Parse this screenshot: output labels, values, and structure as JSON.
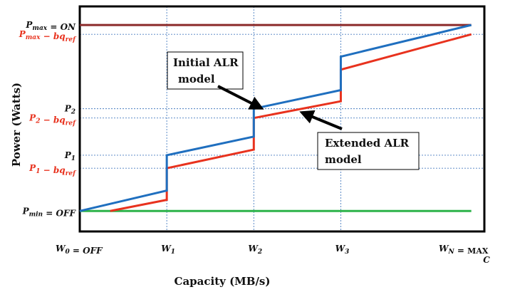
{
  "chart_data": {
    "type": "line",
    "title": "",
    "xlabel": "Capacity (MB/s)",
    "ylabel": "Power (Watts)",
    "x_ticks": [
      "W₀ = OFF",
      "W₁",
      "W₂",
      "W₃",
      "W_N = MAX C"
    ],
    "y_ticks": [
      {
        "label": "P_max = ON",
        "value": 10,
        "color": "#111111"
      },
      {
        "label": "P_max − bq_ref",
        "value": 9.5,
        "color": "#e8321e"
      },
      {
        "label": "P₂",
        "value": 5.5,
        "color": "#111111"
      },
      {
        "label": "P₂ − bq_ref",
        "value": 5.0,
        "color": "#e8321e"
      },
      {
        "label": "P₁",
        "value": 3.0,
        "color": "#111111"
      },
      {
        "label": "P₁ − bq_ref",
        "value": 2.3,
        "color": "#e8321e"
      },
      {
        "label": "P_min = OFF",
        "value": 0,
        "color": "#111111"
      }
    ],
    "xlim": [
      0,
      4.65
    ],
    "ylim": [
      -1.1,
      11.0
    ],
    "grid": true,
    "series": [
      {
        "name": "Initial ALR model",
        "color": "#1f6fbf",
        "x": [
          0,
          1,
          1,
          2,
          2,
          3,
          3,
          4.5
        ],
        "y": [
          0,
          1.1,
          3.0,
          4.0,
          5.5,
          6.5,
          8.3,
          10.0
        ]
      },
      {
        "name": "Extended ALR model",
        "color": "#e8321e",
        "x": [
          0.35,
          1,
          1,
          2,
          2,
          3,
          3,
          4.5
        ],
        "y": [
          0,
          0.6,
          2.3,
          3.3,
          5.0,
          5.9,
          7.6,
          9.5
        ]
      },
      {
        "name": "P_max = ON",
        "color": "#8b2a2a",
        "x": [
          0,
          4.5
        ],
        "y": [
          10,
          10
        ]
      },
      {
        "name": "P_min = OFF",
        "color": "#2db34a",
        "x": [
          0,
          4.5
        ],
        "y": [
          0,
          0
        ]
      }
    ],
    "annotations": [
      {
        "text": "Initial ALR model",
        "line1": "Initial ALR",
        "line2": "model",
        "target_series": "Initial ALR model",
        "x": 2,
        "y": 5.3
      },
      {
        "text": "Extended ALR model",
        "line1": "Extended ALR",
        "line2": "model",
        "target_series": "Extended ALR model",
        "x": 2.3,
        "y": 5.25
      }
    ]
  }
}
